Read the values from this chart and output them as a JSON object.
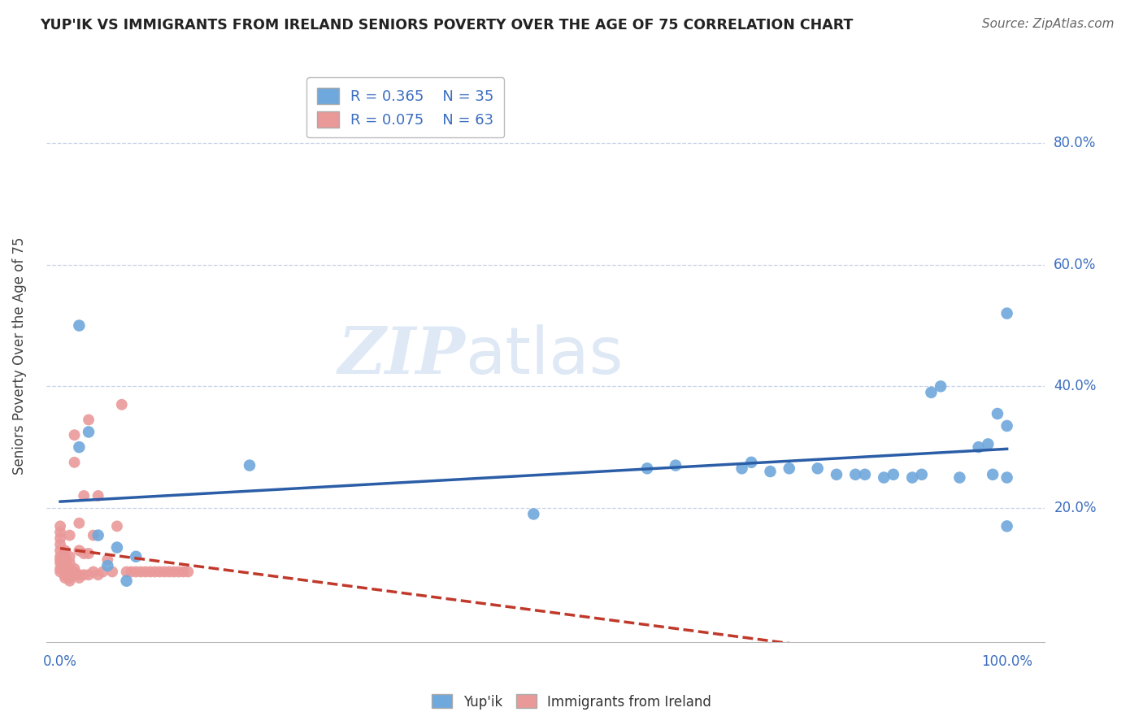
{
  "title": "YUP'IK VS IMMIGRANTS FROM IRELAND SENIORS POVERTY OVER THE AGE OF 75 CORRELATION CHART",
  "source": "Source: ZipAtlas.com",
  "ylabel": "Seniors Poverty Over the Age of 75",
  "legend_series1_label": "Yup'ik",
  "legend_series2_label": "Immigrants from Ireland",
  "R1": 0.365,
  "N1": 35,
  "R2": 0.075,
  "N2": 63,
  "color_blue": "#6fa8dc",
  "color_pink": "#ea9999",
  "trendline_blue": "#2b5ea7",
  "trendline_pink": "#c0392b",
  "watermark_zip": "ZIP",
  "watermark_atlas": "atlas",
  "background_color": "#ffffff",
  "grid_color": "#c8d4e8",
  "blue_x": [
    0.02,
    0.02,
    0.03,
    0.04,
    0.05,
    0.06,
    0.07,
    0.08,
    0.2,
    0.5,
    0.62,
    0.65,
    0.72,
    0.73,
    0.75,
    0.77,
    0.8,
    0.82,
    0.84,
    0.85,
    0.87,
    0.88,
    0.9,
    0.91,
    0.92,
    0.93,
    0.95,
    0.97,
    0.98,
    0.985,
    0.99,
    1.0,
    1.0,
    1.0,
    1.0
  ],
  "blue_y": [
    0.5,
    0.3,
    0.325,
    0.155,
    0.105,
    0.135,
    0.08,
    0.12,
    0.27,
    0.19,
    0.265,
    0.27,
    0.265,
    0.275,
    0.26,
    0.265,
    0.265,
    0.255,
    0.255,
    0.255,
    0.25,
    0.255,
    0.25,
    0.255,
    0.39,
    0.4,
    0.25,
    0.3,
    0.305,
    0.255,
    0.355,
    0.335,
    0.25,
    0.17,
    0.52
  ],
  "pink_x": [
    0.0,
    0.0,
    0.0,
    0.0,
    0.0,
    0.0,
    0.0,
    0.0,
    0.0,
    0.0,
    0.005,
    0.005,
    0.005,
    0.005,
    0.005,
    0.005,
    0.005,
    0.01,
    0.01,
    0.01,
    0.01,
    0.01,
    0.01,
    0.01,
    0.01,
    0.015,
    0.015,
    0.015,
    0.015,
    0.015,
    0.02,
    0.02,
    0.02,
    0.02,
    0.025,
    0.025,
    0.025,
    0.03,
    0.03,
    0.03,
    0.035,
    0.035,
    0.04,
    0.04,
    0.045,
    0.05,
    0.055,
    0.06,
    0.065,
    0.07,
    0.075,
    0.08,
    0.085,
    0.09,
    0.095,
    0.1,
    0.105,
    0.11,
    0.115,
    0.12,
    0.125,
    0.13,
    0.135
  ],
  "pink_y": [
    0.095,
    0.1,
    0.11,
    0.115,
    0.12,
    0.13,
    0.14,
    0.15,
    0.16,
    0.17,
    0.085,
    0.09,
    0.095,
    0.1,
    0.11,
    0.12,
    0.13,
    0.08,
    0.085,
    0.09,
    0.095,
    0.1,
    0.11,
    0.12,
    0.155,
    0.09,
    0.095,
    0.1,
    0.275,
    0.32,
    0.085,
    0.09,
    0.13,
    0.175,
    0.09,
    0.125,
    0.22,
    0.09,
    0.125,
    0.345,
    0.095,
    0.155,
    0.09,
    0.22,
    0.095,
    0.115,
    0.095,
    0.17,
    0.37,
    0.095,
    0.095,
    0.095,
    0.095,
    0.095,
    0.095,
    0.095,
    0.095,
    0.095,
    0.095,
    0.095,
    0.095,
    0.095,
    0.095
  ]
}
